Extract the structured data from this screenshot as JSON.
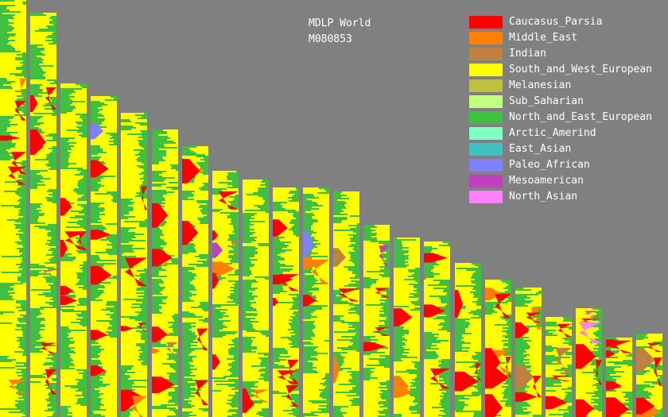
{
  "title": "MDLP World",
  "subtitle": "M080853",
  "chart_data": {
    "type": "area",
    "layout": "22 chromosome strip panels, per-position ancestry composition, strip height proportional to chromosome length",
    "background_color": "#808080",
    "grid": false,
    "legend_placement": "top-right",
    "components": [
      {
        "name": "Caucasus_Parsia",
        "color": "#ff0000"
      },
      {
        "name": "Middle_East",
        "color": "#ff8000"
      },
      {
        "name": "Indian",
        "color": "#c08040"
      },
      {
        "name": "South_and_West_European",
        "color": "#ffff00"
      },
      {
        "name": "Melanesian",
        "color": "#c0c040"
      },
      {
        "name": "Sub_Saharian",
        "color": "#c0ff80"
      },
      {
        "name": "North_and_East_European",
        "color": "#40c040"
      },
      {
        "name": "Arctic_Amerind",
        "color": "#80ffc0"
      },
      {
        "name": "East_Asian",
        "color": "#40c0c0"
      },
      {
        "name": "Paleo_African",
        "color": "#8080ff"
      },
      {
        "name": "Mesoamerican",
        "color": "#c040c0"
      },
      {
        "name": "North_Asian",
        "color": "#ff80ff"
      }
    ],
    "relative_chromosome_lengths": [
      1.0,
      0.97,
      0.8,
      0.77,
      0.73,
      0.69,
      0.65,
      0.59,
      0.57,
      0.55,
      0.55,
      0.54,
      0.46,
      0.43,
      0.42,
      0.37,
      0.33,
      0.31,
      0.24,
      0.26,
      0.19,
      0.2
    ]
  }
}
